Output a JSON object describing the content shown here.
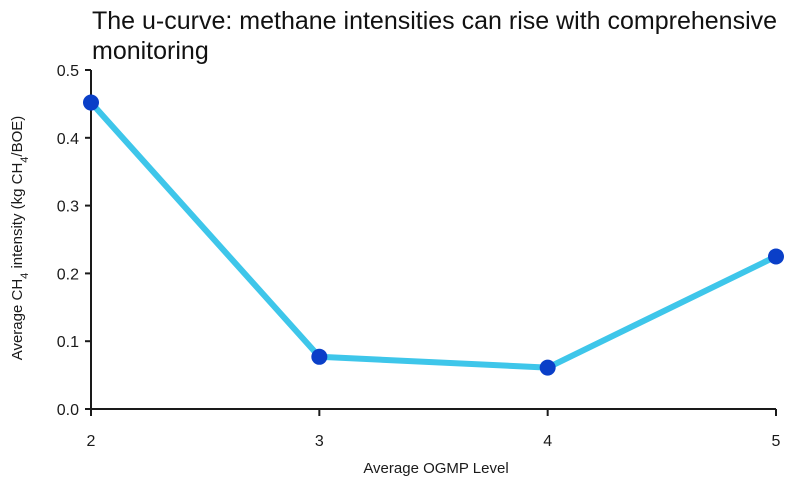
{
  "chart_data": {
    "type": "line",
    "title": "The u-curve: methane intensities can rise with comprehensive monitoring",
    "xlabel": "Average OGMP Level",
    "ylabel": {
      "prefix": "Average CH",
      "sub": "4",
      "middle": " intensity (kg CH",
      "sub2": "4",
      "suffix": "/BOE)"
    },
    "x": [
      2,
      3,
      4,
      5
    ],
    "values": [
      0.452,
      0.077,
      0.061,
      0.225
    ],
    "xlim": [
      2,
      5
    ],
    "ylim": [
      0,
      0.5
    ],
    "x_ticks": [
      "2",
      "3",
      "4",
      "5"
    ],
    "y_ticks": [
      "0.0",
      "0.1",
      "0.2",
      "0.3",
      "0.4",
      "0.5"
    ],
    "grid": false,
    "line_color": "#3ec6ea",
    "marker_color": "#0a3fc8"
  }
}
